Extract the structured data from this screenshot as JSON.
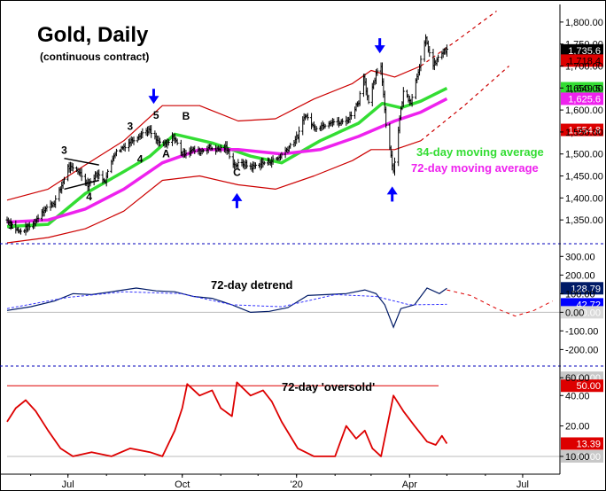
{
  "chart_data": [
    {
      "type": "ohlc",
      "title": "Gold, Daily",
      "subtitle": "(continuous contract)",
      "x_ticks": [
        "Jul",
        "Oct",
        "'20",
        "Apr",
        "Jul"
      ],
      "y_ticks": [
        "1,800.00",
        "1,750.00",
        "1,700.00",
        "1,650.00",
        "1,600.00",
        "1,550.00",
        "1,500.00",
        "1,450.00",
        "1,400.00",
        "1,350.00"
      ],
      "ylim": [
        1310,
        1830
      ],
      "x_range": [
        "2019-05-13",
        "2020-07-31"
      ],
      "price_path": [
        [
          "2019-05-13",
          1350
        ],
        [
          "2019-05-23",
          1322
        ],
        [
          "2019-06-03",
          1340
        ],
        [
          "2019-06-10",
          1370
        ],
        [
          "2019-06-20",
          1390
        ],
        [
          "2019-06-25",
          1420
        ],
        [
          "2019-07-01",
          1470
        ],
        [
          "2019-07-10",
          1460
        ],
        [
          "2019-07-17",
          1430
        ],
        [
          "2019-07-24",
          1455
        ],
        [
          "2019-07-31",
          1440
        ],
        [
          "2019-08-07",
          1500
        ],
        [
          "2019-08-14",
          1515
        ],
        [
          "2019-08-21",
          1530
        ],
        [
          "2019-08-28",
          1545
        ],
        [
          "2019-09-04",
          1555
        ],
        [
          "2019-09-11",
          1528
        ],
        [
          "2019-09-18",
          1520
        ],
        [
          "2019-09-24",
          1540
        ],
        [
          "2019-10-01",
          1500
        ],
        [
          "2019-10-08",
          1510
        ],
        [
          "2019-10-15",
          1505
        ],
        [
          "2019-10-22",
          1515
        ],
        [
          "2019-10-29",
          1510
        ],
        [
          "2019-11-05",
          1515
        ],
        [
          "2019-11-12",
          1475
        ],
        [
          "2019-11-19",
          1478
        ],
        [
          "2019-11-26",
          1470
        ],
        [
          "2019-12-03",
          1478
        ],
        [
          "2019-12-10",
          1483
        ],
        [
          "2019-12-17",
          1490
        ],
        [
          "2019-12-24",
          1510
        ],
        [
          "2020-01-02",
          1540
        ],
        [
          "2020-01-08",
          1590
        ],
        [
          "2020-01-15",
          1560
        ],
        [
          "2020-01-22",
          1565
        ],
        [
          "2020-01-29",
          1575
        ],
        [
          "2020-02-05",
          1570
        ],
        [
          "2020-02-12",
          1580
        ],
        [
          "2020-02-20",
          1620
        ],
        [
          "2020-02-24",
          1680
        ],
        [
          "2020-02-28",
          1615
        ],
        [
          "2020-03-05",
          1680
        ],
        [
          "2020-03-09",
          1700
        ],
        [
          "2020-03-13",
          1570
        ],
        [
          "2020-03-19",
          1460
        ],
        [
          "2020-03-24",
          1580
        ],
        [
          "2020-03-27",
          1640
        ],
        [
          "2020-04-02",
          1620
        ],
        [
          "2020-04-08",
          1690
        ],
        [
          "2020-04-14",
          1760
        ],
        [
          "2020-04-20",
          1700
        ],
        [
          "2020-04-27",
          1730
        ],
        [
          "2020-05-01",
          1735
        ]
      ],
      "last_price": "1,735.6",
      "upper_tag": "1,718.4",
      "series": [
        {
          "name": "34-day moving average",
          "color": "#33dd33",
          "last_value": "1,649.5",
          "values": [
            [
              "2019-05-13",
              1335
            ],
            [
              "2019-06-15",
              1340
            ],
            [
              "2019-07-15",
              1410
            ],
            [
              "2019-08-15",
              1460
            ],
            [
              "2019-09-05",
              1495
            ],
            [
              "2019-09-25",
              1545
            ],
            [
              "2019-10-25",
              1525
            ],
            [
              "2019-11-25",
              1495
            ],
            [
              "2019-12-20",
              1480
            ],
            [
              "2020-01-20",
              1530
            ],
            [
              "2020-02-20",
              1570
            ],
            [
              "2020-03-10",
              1615
            ],
            [
              "2020-03-25",
              1605
            ],
            [
              "2020-04-10",
              1620
            ],
            [
              "2020-05-01",
              1649.5
            ]
          ]
        },
        {
          "name": "72-day moving average",
          "color": "#ee22ee",
          "last_value": "1,625.6",
          "values": [
            [
              "2019-05-13",
              1345
            ],
            [
              "2019-06-15",
              1350
            ],
            [
              "2019-07-15",
              1375
            ],
            [
              "2019-08-15",
              1420
            ],
            [
              "2019-09-15",
              1480
            ],
            [
              "2019-10-15",
              1510
            ],
            [
              "2019-11-15",
              1510
            ],
            [
              "2019-12-20",
              1500
            ],
            [
              "2020-01-20",
              1510
            ],
            [
              "2020-02-20",
              1540
            ],
            [
              "2020-03-20",
              1575
            ],
            [
              "2020-04-10",
              1595
            ],
            [
              "2020-05-01",
              1625.6
            ]
          ]
        },
        {
          "name": "upper band",
          "color": "#cc0000",
          "values": [
            [
              "2019-05-13",
              1395
            ],
            [
              "2019-06-15",
              1420
            ],
            [
              "2019-07-15",
              1475
            ],
            [
              "2019-08-15",
              1530
            ],
            [
              "2019-09-15",
              1610
            ],
            [
              "2019-10-15",
              1610
            ],
            [
              "2019-11-15",
              1575
            ],
            [
              "2019-12-15",
              1580
            ],
            [
              "2020-01-15",
              1625
            ],
            [
              "2020-02-15",
              1660
            ],
            [
              "2020-03-01",
              1690
            ],
            [
              "2020-03-20",
              1675
            ],
            [
              "2020-04-10",
              1700
            ]
          ]
        },
        {
          "name": "lower band",
          "color": "#cc0000",
          "values": [
            [
              "2019-05-13",
              1298
            ],
            [
              "2019-06-15",
              1310
            ],
            [
              "2019-07-15",
              1330
            ],
            [
              "2019-08-15",
              1370
            ],
            [
              "2019-09-15",
              1440
            ],
            [
              "2019-10-15",
              1450
            ],
            [
              "2019-11-15",
              1430
            ],
            [
              "2019-12-15",
              1420
            ],
            [
              "2020-01-15",
              1450
            ],
            [
              "2020-02-15",
              1485
            ],
            [
              "2020-03-01",
              1510
            ],
            [
              "2020-03-20",
              1510
            ],
            [
              "2020-04-10",
              1530
            ]
          ]
        },
        {
          "name": "projected upper band",
          "color": "#cc0000",
          "dashed": true,
          "values": [
            [
              "2020-04-10",
              1700
            ],
            [
              "2020-05-10",
              1760
            ],
            [
              "2020-06-10",
              1825
            ]
          ]
        },
        {
          "name": "projected lower band",
          "color": "#cc0000",
          "dashed": true,
          "values": [
            [
              "2020-04-10",
              1530
            ],
            [
              "2020-05-15",
              1610
            ],
            [
              "2020-06-20",
              1700
            ]
          ]
        }
      ],
      "price_tags": [
        {
          "value": "1,554.8",
          "bg": "#dd0000",
          "fg": "#ffffff",
          "level": 1554.8
        }
      ],
      "wave_labels": [
        {
          "text": "1",
          "date": "2019-05-16",
          "price": 1330
        },
        {
          "text": "3",
          "date": "2019-06-28",
          "price": 1500
        },
        {
          "text": "4",
          "date": "2019-07-18",
          "price": 1395
        },
        {
          "text": "3",
          "date": "2019-08-20",
          "price": 1555
        },
        {
          "text": "4",
          "date": "2019-08-28",
          "price": 1480
        },
        {
          "text": "5",
          "date": "2019-09-10",
          "price": 1580
        },
        {
          "text": "A",
          "date": "2019-09-18",
          "price": 1492
        },
        {
          "text": "B",
          "date": "2019-10-04",
          "price": 1578
        },
        {
          "text": "C",
          "date": "2019-11-14",
          "price": 1450
        }
      ],
      "arrows": [
        {
          "dir": "down",
          "date": "2019-09-08",
          "price": 1620
        },
        {
          "dir": "up",
          "date": "2019-11-14",
          "price": 1405
        },
        {
          "dir": "down",
          "date": "2020-03-08",
          "price": 1735
        },
        {
          "dir": "up",
          "date": "2020-03-18",
          "price": 1420
        }
      ],
      "annotations": [
        {
          "text": "34-day moving average",
          "color": "#33dd33"
        },
        {
          "text": "72-day moving average",
          "color": "#ee22ee"
        }
      ],
      "triangle": [
        [
          "2019-06-28",
          1490
        ],
        [
          "2019-07-26",
          1475
        ],
        [
          "2019-06-28",
          1420
        ],
        [
          "2019-07-26",
          1440
        ]
      ]
    },
    {
      "type": "line",
      "title": "72-day detrend",
      "y_ticks": [
        "300.00",
        "200.00",
        "100.00",
        "0.00",
        "-100.00",
        "-200.00"
      ],
      "ylim": [
        -260,
        330
      ],
      "reference": 0,
      "tags": [
        {
          "value": "128.79",
          "bg": "#001a66",
          "fg": "#ffffff",
          "level": 128.79
        },
        {
          "value": "42.72",
          "bg": "#0000ff",
          "fg": "#ffffff",
          "level": 42.72
        },
        {
          "value": "0.00",
          "bg": "#d8d8d8",
          "fg": "#ffffff",
          "level": 0
        }
      ],
      "series": [
        {
          "name": "detrend",
          "color": "#001a66",
          "values": [
            [
              "2019-05-13",
              10
            ],
            [
              "2019-06-01",
              30
            ],
            [
              "2019-06-20",
              60
            ],
            [
              "2019-07-05",
              100
            ],
            [
              "2019-07-20",
              95
            ],
            [
              "2019-08-05",
              110
            ],
            [
              "2019-08-25",
              130
            ],
            [
              "2019-09-10",
              115
            ],
            [
              "2019-09-25",
              110
            ],
            [
              "2019-10-10",
              85
            ],
            [
              "2019-10-25",
              75
            ],
            [
              "2019-11-10",
              40
            ],
            [
              "2019-11-25",
              0
            ],
            [
              "2019-12-10",
              5
            ],
            [
              "2019-12-25",
              25
            ],
            [
              "2020-01-10",
              90
            ],
            [
              "2020-01-25",
              95
            ],
            [
              "2020-02-10",
              100
            ],
            [
              "2020-02-25",
              120
            ],
            [
              "2020-03-05",
              100
            ],
            [
              "2020-03-12",
              40
            ],
            [
              "2020-03-19",
              -80
            ],
            [
              "2020-03-25",
              20
            ],
            [
              "2020-04-05",
              40
            ],
            [
              "2020-04-15",
              130
            ],
            [
              "2020-04-25",
              100
            ],
            [
              "2020-05-01",
              128.79
            ]
          ]
        },
        {
          "name": "smoothed detrend",
          "color": "#3333ff",
          "values": [
            [
              "2019-05-13",
              20
            ],
            [
              "2019-07-01",
              80
            ],
            [
              "2019-08-15",
              110
            ],
            [
              "2019-09-30",
              100
            ],
            [
              "2019-11-10",
              40
            ],
            [
              "2019-12-20",
              30
            ],
            [
              "2020-02-01",
              95
            ],
            [
              "2020-03-05",
              85
            ],
            [
              "2020-04-01",
              40
            ],
            [
              "2020-05-01",
              42.72
            ]
          ]
        },
        {
          "name": "projection",
          "color": "#dd0000",
          "dashed": true,
          "values": [
            [
              "2020-05-01",
              120
            ],
            [
              "2020-05-20",
              90
            ],
            [
              "2020-06-10",
              20
            ],
            [
              "2020-06-25",
              -20
            ],
            [
              "2020-07-10",
              10
            ],
            [
              "2020-07-25",
              60
            ]
          ]
        }
      ]
    },
    {
      "type": "line",
      "title": "72-day 'oversold'",
      "y_ticks": [
        "60.00",
        "40.00",
        "20.00",
        "10.00"
      ],
      "ylim": [
        8,
        68
      ],
      "scale": "log",
      "reference_level": 50,
      "tags": [
        {
          "value": "60.00",
          "bg": "#c8c8c8",
          "fg": "#ffffff",
          "level": 60
        },
        {
          "value": "50.00",
          "bg": "#dd0000",
          "fg": "#ffffff",
          "level": 50
        },
        {
          "value": "13.39",
          "bg": "#dd0000",
          "fg": "#ffffff",
          "level": 13.39
        },
        {
          "value": "10.00",
          "bg": "#c8c8c8",
          "fg": "#ffffff",
          "level": 10
        }
      ],
      "series": [
        {
          "name": "oversold",
          "color": "#dd0000",
          "values": [
            [
              "2019-05-13",
              22
            ],
            [
              "2019-05-20",
              30
            ],
            [
              "2019-05-28",
              36
            ],
            [
              "2019-06-05",
              28
            ],
            [
              "2019-06-15",
              18
            ],
            [
              "2019-06-25",
              12
            ],
            [
              "2019-07-05",
              10
            ],
            [
              "2019-07-20",
              11
            ],
            [
              "2019-08-05",
              10
            ],
            [
              "2019-08-20",
              12
            ],
            [
              "2019-09-05",
              11
            ],
            [
              "2019-09-15",
              10
            ],
            [
              "2019-09-25",
              18
            ],
            [
              "2019-10-01",
              30
            ],
            [
              "2019-10-05",
              52
            ],
            [
              "2019-10-15",
              40
            ],
            [
              "2019-10-25",
              45
            ],
            [
              "2019-11-01",
              30
            ],
            [
              "2019-11-10",
              25
            ],
            [
              "2019-11-14",
              54
            ],
            [
              "2019-11-25",
              40
            ],
            [
              "2019-12-05",
              45
            ],
            [
              "2019-12-12",
              35
            ],
            [
              "2019-12-20",
              22
            ],
            [
              "2020-01-02",
              12
            ],
            [
              "2020-01-15",
              10
            ],
            [
              "2020-02-01",
              10
            ],
            [
              "2020-02-10",
              20
            ],
            [
              "2020-02-18",
              15
            ],
            [
              "2020-02-25",
              18
            ],
            [
              "2020-03-02",
              12
            ],
            [
              "2020-03-09",
              10
            ],
            [
              "2020-03-19",
              40
            ],
            [
              "2020-03-27",
              28
            ],
            [
              "2020-04-05",
              20
            ],
            [
              "2020-04-15",
              14
            ],
            [
              "2020-04-22",
              13
            ],
            [
              "2020-04-27",
              16
            ],
            [
              "2020-05-01",
              13.39
            ]
          ]
        }
      ]
    }
  ]
}
